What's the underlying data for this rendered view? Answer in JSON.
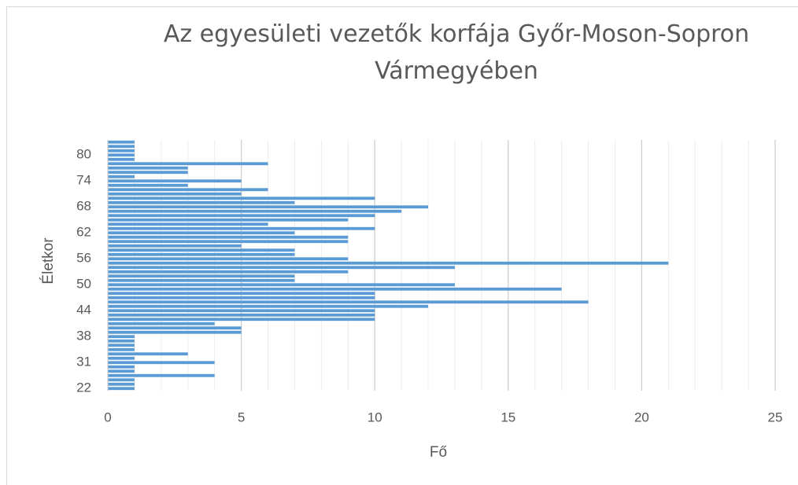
{
  "chart_data": {
    "type": "bar",
    "orientation": "horizontal",
    "title": "Az egyesületi vezetők korfája Győr-Moson-Sopron Vármegyében",
    "x_label": "Fő",
    "y_label": "Életkor",
    "categories": [
      "22",
      null,
      null,
      null,
      null,
      null,
      "31",
      null,
      null,
      null,
      null,
      null,
      "38",
      null,
      null,
      null,
      null,
      null,
      "44",
      null,
      null,
      null,
      null,
      null,
      "50",
      null,
      null,
      null,
      null,
      null,
      "56",
      null,
      null,
      null,
      null,
      null,
      "62",
      null,
      null,
      null,
      null,
      null,
      "68",
      null,
      null,
      null,
      null,
      null,
      "74",
      null,
      null,
      null,
      null,
      null,
      "80",
      null,
      null,
      null
    ],
    "values": [
      1,
      1,
      1,
      4,
      1,
      1,
      4,
      1,
      3,
      1,
      1,
      1,
      1,
      5,
      5,
      4,
      10,
      10,
      10,
      12,
      18,
      10,
      10,
      17,
      13,
      7,
      7,
      9,
      13,
      21,
      9,
      7,
      7,
      5,
      9,
      9,
      7,
      10,
      6,
      9,
      10,
      11,
      12,
      7,
      10,
      5,
      6,
      3,
      5,
      1,
      3,
      3,
      6,
      1,
      1,
      1,
      1,
      1
    ],
    "color": "#5b9bd5",
    "xlim": [
      0,
      25
    ],
    "xticks": [
      0,
      5,
      10,
      15,
      20,
      25
    ],
    "grid": true,
    "minor_grid_step": 1
  }
}
